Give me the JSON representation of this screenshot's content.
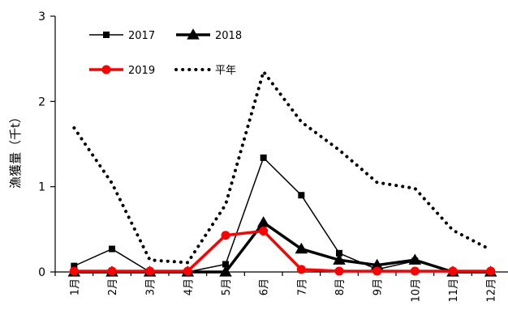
{
  "chart_data": {
    "type": "line",
    "categories": [
      "1月",
      "2月",
      "3月",
      "4月",
      "5月",
      "6月",
      "7月",
      "8月",
      "9月",
      "10月",
      "11月",
      "12月"
    ],
    "ylabel": "漁獲量（千t）",
    "ylim": [
      0,
      3
    ],
    "yticks": [
      0,
      1,
      2,
      3
    ],
    "legend_position": "top-left",
    "grid": false,
    "series": [
      {
        "name": "2017",
        "values": [
          0.07,
          0.27,
          0,
          0,
          0.09,
          1.34,
          0.9,
          0.22,
          0.03,
          0.13,
          0,
          0
        ],
        "color": "#000000",
        "marker": "square",
        "line": "solid-thin"
      },
      {
        "name": "2018",
        "values": [
          0,
          0,
          0,
          0,
          0,
          0.58,
          0.27,
          0.14,
          0.08,
          0.14,
          0,
          0
        ],
        "color": "#000000",
        "marker": "triangle",
        "line": "solid-thick"
      },
      {
        "name": "2019",
        "values": [
          0.01,
          0.01,
          0.01,
          0.01,
          0.43,
          0.48,
          0.03,
          0.01,
          0.01,
          0.01,
          0.01,
          0.01
        ],
        "color": "#ff0000",
        "marker": "circle",
        "line": "solid-thick"
      },
      {
        "name": "平年",
        "values": [
          1.69,
          1.04,
          0.14,
          0.11,
          0.79,
          2.35,
          1.76,
          1.43,
          1.05,
          0.98,
          0.49,
          0.26
        ],
        "color": "#000000",
        "marker": "none",
        "line": "dotted"
      }
    ]
  }
}
